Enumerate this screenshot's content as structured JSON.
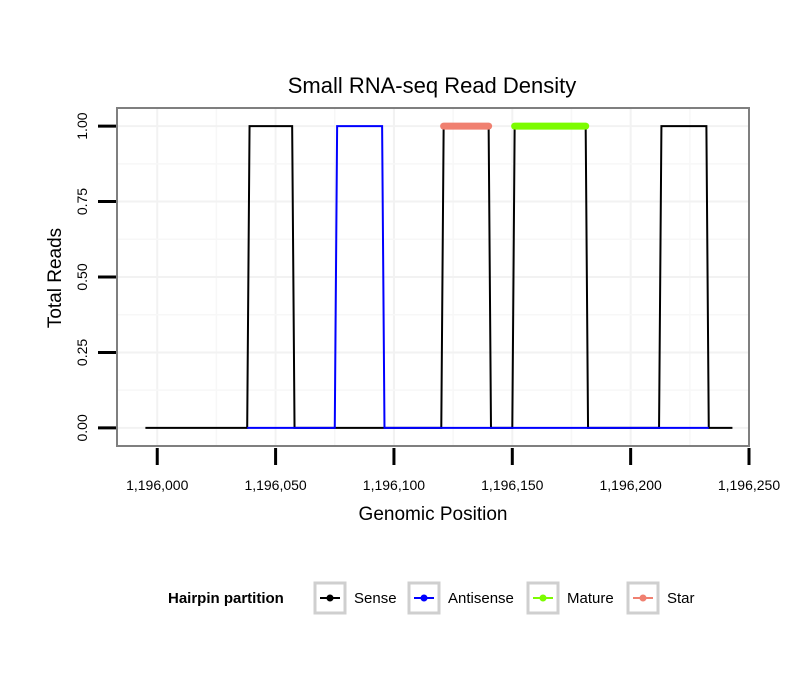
{
  "chart_data": {
    "type": "line",
    "title": "Small RNA-seq Read Density",
    "xlabel": "Genomic Position",
    "ylabel": "Total Reads",
    "xlim": [
      1195983,
      1196250
    ],
    "ylim": [
      -0.06,
      1.06
    ],
    "x_ticks": [
      1196000,
      1196050,
      1196100,
      1196150,
      1196200,
      1196250
    ],
    "x_tick_labels": [
      "1,196,000",
      "1,196,050",
      "1,196,100",
      "1,196,150",
      "1,196,200",
      "1,196,250"
    ],
    "y_ticks": [
      0,
      0.25,
      0.5,
      0.75,
      1.0
    ],
    "y_tick_labels": [
      "0.00",
      "0.25",
      "0.50",
      "0.75",
      "1.00"
    ],
    "grid": true,
    "legend_position": "bottom",
    "legend_title": "Hairpin partition",
    "series": [
      {
        "name": "Sense",
        "color": "#000000",
        "marker": true,
        "x": [
          1195995,
          1196038,
          1196039,
          1196057,
          1196058,
          1196120,
          1196121,
          1196140,
          1196141,
          1196150,
          1196151,
          1196181,
          1196182,
          1196212,
          1196213,
          1196232,
          1196233,
          1196243
        ],
        "y": [
          0,
          0,
          1,
          1,
          0,
          0,
          1,
          1,
          0,
          0,
          1,
          1,
          0,
          0,
          1,
          1,
          0,
          0
        ]
      },
      {
        "name": "Antisense",
        "color": "#0000ff",
        "marker": true,
        "x": [
          1196038,
          1196075,
          1196076,
          1196095,
          1196096,
          1196233
        ],
        "y": [
          0,
          0,
          1,
          1,
          0,
          0
        ]
      },
      {
        "name": "Mature",
        "color": "#7cfc00",
        "marker": true,
        "thick": true,
        "x": [
          1196151,
          1196181
        ],
        "y": [
          1,
          1
        ]
      },
      {
        "name": "Star",
        "color": "#f08070",
        "marker": true,
        "thick": true,
        "x": [
          1196121,
          1196140
        ],
        "y": [
          1,
          1
        ]
      }
    ]
  }
}
